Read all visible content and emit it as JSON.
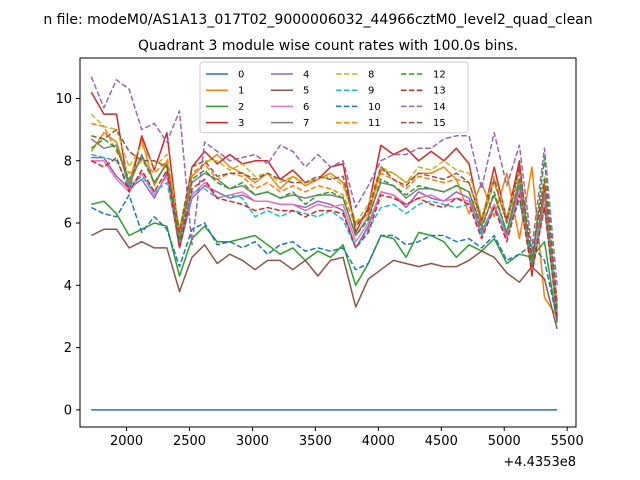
{
  "chart_data": {
    "type": "line",
    "suptitle": "n file: modeM0/AS1A13_017T02_9000006032_44966cztM0_level2_quad_clean",
    "title": "Quadrant 3 module wise count rates with 100.0s bins.",
    "xlabel": "",
    "ylabel": "",
    "x_offset_label": "+4.4353e8",
    "xlim": [
      1630,
      5570
    ],
    "ylim": [
      -0.55,
      11.3
    ],
    "x_ticks": [
      2000,
      2500,
      3000,
      3500,
      4000,
      4500,
      5000,
      5500
    ],
    "y_ticks": [
      0,
      2,
      4,
      6,
      8,
      10
    ],
    "x": [
      1720,
      1820,
      1920,
      2020,
      2120,
      2220,
      2320,
      2420,
      2520,
      2620,
      2720,
      2820,
      2920,
      3020,
      3120,
      3220,
      3320,
      3420,
      3520,
      3620,
      3720,
      3820,
      3920,
      4020,
      4120,
      4220,
      4320,
      4420,
      4520,
      4620,
      4720,
      4820,
      4920,
      5020,
      5120,
      5220,
      5320,
      5420
    ],
    "legend": {
      "placement": "upper center",
      "columns": 4
    },
    "series": [
      {
        "name": "0",
        "color": "#1f77b4",
        "dash": "solid",
        "values": [
          0,
          0,
          0,
          0,
          0,
          0,
          0,
          0,
          0,
          0,
          0,
          0,
          0,
          0,
          0,
          0,
          0,
          0,
          0,
          0,
          0,
          0,
          0,
          0,
          0,
          0,
          0,
          0,
          0,
          0,
          0,
          0,
          0,
          0,
          0,
          0,
          0,
          0
        ]
      },
      {
        "name": "1",
        "color": "#ff7f0e",
        "dash": "solid",
        "values": [
          8.3,
          8.9,
          8.6,
          7.3,
          8.7,
          7.2,
          8.0,
          5.8,
          7.5,
          7.9,
          8.2,
          7.8,
          7.6,
          7.3,
          7.6,
          7.1,
          7.5,
          7.2,
          7.4,
          7.6,
          7.3,
          6.0,
          6.3,
          7.7,
          7.6,
          7.3,
          7.6,
          7.6,
          7.8,
          7.4,
          6.3,
          7.3,
          6.2,
          7.6,
          5.5,
          7.8,
          3.6,
          3.0
        ]
      },
      {
        "name": "2",
        "color": "#2ca02c",
        "dash": "solid",
        "values": [
          6.6,
          6.7,
          6.3,
          5.6,
          5.8,
          6.0,
          5.9,
          4.3,
          5.5,
          5.9,
          5.4,
          5.4,
          5.5,
          5.6,
          5.3,
          5.0,
          5.2,
          4.8,
          5.1,
          4.9,
          5.3,
          4.0,
          4.7,
          5.6,
          5.5,
          4.9,
          5.7,
          5.6,
          5.4,
          4.9,
          5.3,
          5.1,
          5.5,
          4.7,
          5.0,
          4.9,
          5.4,
          2.8
        ]
      },
      {
        "name": "3",
        "color": "#d62728",
        "dash": "solid",
        "values": [
          10.2,
          9.5,
          9.5,
          7.0,
          8.8,
          7.7,
          8.9,
          5.5,
          7.8,
          8.3,
          7.9,
          8.2,
          7.9,
          8.0,
          8.0,
          7.4,
          7.7,
          7.3,
          7.4,
          7.8,
          7.9,
          5.7,
          6.5,
          8.5,
          8.2,
          8.4,
          8.0,
          8.3,
          8.0,
          8.4,
          7.9,
          6.0,
          7.8,
          6.1,
          8.0,
          4.3,
          7.2,
          2.9
        ]
      },
      {
        "name": "4",
        "color": "#9467bd",
        "dash": "solid",
        "values": [
          8.1,
          8.1,
          7.5,
          7.1,
          7.4,
          6.8,
          7.6,
          5.2,
          6.8,
          7.2,
          7.0,
          6.8,
          6.9,
          6.7,
          6.7,
          6.6,
          6.6,
          6.5,
          6.7,
          6.6,
          6.4,
          5.2,
          5.9,
          7.0,
          6.9,
          6.5,
          7.0,
          6.8,
          6.7,
          7.0,
          6.8,
          5.7,
          6.6,
          5.6,
          7.2,
          4.4,
          6.6,
          3.1
        ]
      },
      {
        "name": "5",
        "color": "#8c564b",
        "dash": "solid",
        "values": [
          5.6,
          5.8,
          5.8,
          5.2,
          5.4,
          5.2,
          5.2,
          3.8,
          4.9,
          5.3,
          4.7,
          5.0,
          4.8,
          4.5,
          4.8,
          4.8,
          4.5,
          4.8,
          4.3,
          4.8,
          4.9,
          3.3,
          4.2,
          4.5,
          4.8,
          4.7,
          4.6,
          4.7,
          4.6,
          4.6,
          4.8,
          5.1,
          4.9,
          4.4,
          4.1,
          4.6,
          4.2,
          2.6
        ]
      },
      {
        "name": "6",
        "color": "#e377c2",
        "dash": "solid",
        "values": [
          8.0,
          8.0,
          7.4,
          7.0,
          7.6,
          6.9,
          7.5,
          5.4,
          6.9,
          7.3,
          6.8,
          6.9,
          7.0,
          6.7,
          6.7,
          6.6,
          6.6,
          6.4,
          6.6,
          6.5,
          6.6,
          5.4,
          6.0,
          7.0,
          6.9,
          6.6,
          6.8,
          6.9,
          6.7,
          6.8,
          6.7,
          5.6,
          6.6,
          5.5,
          7.0,
          4.5,
          6.6,
          3.0
        ]
      },
      {
        "name": "7",
        "color": "#7f7f7f",
        "dash": "solid",
        "values": [
          8.7,
          8.4,
          8.5,
          7.2,
          8.2,
          7.3,
          7.9,
          5.6,
          7.3,
          7.6,
          7.4,
          7.1,
          7.2,
          6.9,
          7.0,
          6.8,
          6.9,
          6.8,
          6.9,
          6.9,
          6.8,
          5.6,
          6.2,
          7.3,
          7.2,
          6.8,
          7.1,
          7.1,
          7.0,
          7.2,
          7.0,
          5.9,
          6.9,
          5.7,
          7.4,
          4.6,
          6.9,
          3.2
        ]
      },
      {
        "name": "8",
        "color": "#bcbd22",
        "dash": "dashed",
        "values": [
          9.5,
          9.1,
          9.0,
          7.8,
          8.5,
          7.8,
          8.2,
          5.8,
          7.8,
          8.0,
          8.0,
          7.7,
          7.9,
          7.5,
          7.6,
          7.3,
          7.5,
          7.3,
          7.4,
          7.5,
          7.2,
          6.0,
          6.6,
          7.8,
          7.6,
          7.3,
          7.8,
          7.7,
          8.0,
          7.7,
          7.6,
          6.2,
          7.5,
          6.2,
          7.7,
          5.0,
          7.5,
          3.4
        ]
      },
      {
        "name": "9",
        "color": "#17becf",
        "dash": "dashed",
        "values": [
          8.2,
          8.1,
          8.0,
          7.2,
          7.5,
          7.0,
          7.3,
          5.4,
          7.0,
          7.1,
          6.8,
          6.9,
          6.8,
          6.2,
          6.4,
          6.2,
          6.4,
          6.3,
          6.2,
          6.4,
          6.1,
          5.2,
          5.8,
          6.5,
          6.6,
          6.3,
          6.6,
          6.7,
          6.6,
          6.5,
          6.6,
          5.6,
          6.5,
          5.7,
          6.7,
          4.8,
          6.5,
          3.1
        ]
      },
      {
        "name": "10",
        "color": "#1f77b4",
        "dash": "dashed",
        "values": [
          6.5,
          6.3,
          6.2,
          6.9,
          5.7,
          6.2,
          5.8,
          4.6,
          5.8,
          6.0,
          5.3,
          5.4,
          5.2,
          5.4,
          5.0,
          5.3,
          5.4,
          5.1,
          5.2,
          5.1,
          5.2,
          4.5,
          4.7,
          5.6,
          5.6,
          5.3,
          5.4,
          5.6,
          5.6,
          5.4,
          5.5,
          5.2,
          5.6,
          4.8,
          5.0,
          5.3,
          4.8,
          2.9
        ]
      },
      {
        "name": "11",
        "color": "#ff7f0e",
        "dash": "dashed",
        "values": [
          9.2,
          9.1,
          8.3,
          7.6,
          8.0,
          7.6,
          8.0,
          5.6,
          7.6,
          7.9,
          7.4,
          7.6,
          7.5,
          7.1,
          7.3,
          7.0,
          7.2,
          7.0,
          7.2,
          7.1,
          6.9,
          5.9,
          6.3,
          7.6,
          7.4,
          7.1,
          7.5,
          7.4,
          7.3,
          7.4,
          7.3,
          6.0,
          7.3,
          6.0,
          7.6,
          4.9,
          7.3,
          3.5
        ]
      },
      {
        "name": "12",
        "color": "#2ca02c",
        "dash": "dashed",
        "values": [
          8.4,
          8.7,
          8.4,
          7.4,
          8.1,
          7.3,
          7.9,
          5.4,
          7.4,
          7.7,
          7.3,
          7.1,
          7.3,
          6.9,
          7.0,
          6.8,
          7.0,
          6.6,
          6.9,
          7.0,
          6.8,
          5.6,
          6.1,
          7.4,
          7.2,
          6.9,
          7.2,
          7.1,
          7.0,
          7.2,
          7.0,
          5.8,
          7.0,
          5.7,
          7.4,
          4.6,
          8.1,
          3.3
        ]
      },
      {
        "name": "13",
        "color": "#d62728",
        "dash": "dashed",
        "values": [
          8.0,
          7.8,
          8.1,
          7.0,
          7.7,
          7.0,
          7.7,
          5.2,
          7.1,
          7.4,
          6.8,
          6.7,
          6.6,
          6.4,
          6.5,
          6.4,
          6.4,
          6.2,
          6.4,
          6.4,
          6.3,
          5.2,
          5.7,
          6.9,
          6.8,
          6.6,
          6.8,
          6.6,
          6.5,
          6.8,
          6.6,
          5.5,
          6.5,
          5.4,
          6.9,
          4.4,
          6.5,
          3.0
        ]
      },
      {
        "name": "14",
        "color": "#9467bd",
        "dash": "dashed",
        "values": [
          10.7,
          9.7,
          10.6,
          10.3,
          9.0,
          9.2,
          8.6,
          9.6,
          5.3,
          8.6,
          8.3,
          8.0,
          8.1,
          8.2,
          7.9,
          8.5,
          8.3,
          7.8,
          8.2,
          7.8,
          8.0,
          6.5,
          7.2,
          8.0,
          8.2,
          8.2,
          8.4,
          8.4,
          8.7,
          8.8,
          8.8,
          7.1,
          8.9,
          7.2,
          8.5,
          5.2,
          8.4,
          4.0
        ]
      },
      {
        "name": "15",
        "color": "#8c564b",
        "dash": "dashed",
        "values": [
          8.8,
          8.7,
          9.0,
          8.3,
          8.0,
          8.0,
          7.8,
          5.7,
          7.8,
          8.0,
          7.5,
          7.6,
          7.6,
          7.4,
          7.6,
          7.4,
          7.3,
          7.3,
          7.5,
          7.4,
          7.5,
          5.9,
          6.4,
          7.8,
          7.4,
          7.2,
          7.6,
          7.5,
          7.4,
          7.6,
          7.3,
          6.1,
          7.4,
          6.0,
          7.8,
          4.9,
          7.4,
          3.4
        ]
      }
    ]
  }
}
